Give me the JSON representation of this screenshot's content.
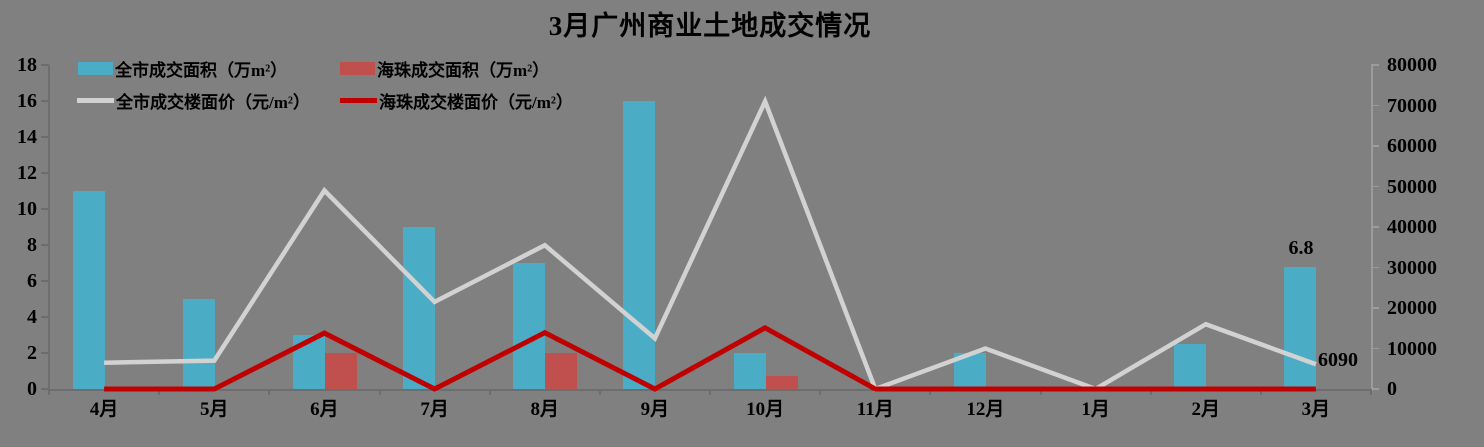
{
  "page": {
    "background": "#808080"
  },
  "chart": {
    "title": "3月广州商业土地成交情况",
    "legend": [
      {
        "label": "全市成交面积（万m²）",
        "swatch": "bar",
        "color": "#4bacc6"
      },
      {
        "label": "海珠成交面积（万m²）",
        "swatch": "bar",
        "color": "#c0504d"
      },
      {
        "label": "全市成交楼面价（元/m²）",
        "swatch": "line",
        "color": "#d2d2d2"
      },
      {
        "label": "海珠成交楼面价（元/m²）",
        "swatch": "line",
        "color": "#c00000"
      }
    ],
    "axes": {
      "left_ticks": [
        "0",
        "2",
        "4",
        "6",
        "8",
        "10",
        "12",
        "14",
        "16",
        "18"
      ],
      "right_ticks": [
        "0",
        "10000",
        "20000",
        "30000",
        "40000",
        "50000",
        "60000",
        "70000",
        "80000"
      ],
      "categories": [
        "4月",
        "5月",
        "6月",
        "7月",
        "8月",
        "9月",
        "10月",
        "11月",
        "12月",
        "1月",
        "2月",
        "3月"
      ]
    },
    "annotations": {
      "march_area_label": "6.8",
      "march_price_label": "6090"
    }
  },
  "chart_data": {
    "type": "combo-bar-line",
    "title": "3月广州商业土地成交情况",
    "categories": [
      "4月",
      "5月",
      "6月",
      "7月",
      "8月",
      "9月",
      "10月",
      "11月",
      "12月",
      "1月",
      "2月",
      "3月"
    ],
    "series": [
      {
        "name": "全市成交面积（万m²）",
        "type": "bar",
        "axis": "left",
        "color": "#4bacc6",
        "values": [
          11,
          5,
          3,
          9,
          7,
          16,
          2,
          0,
          2,
          0,
          2.5,
          6.8
        ]
      },
      {
        "name": "海珠成交面积（万m²）",
        "type": "bar",
        "axis": "left",
        "color": "#c0504d",
        "values": [
          0,
          0,
          2,
          0,
          2,
          0,
          0.7,
          0,
          0,
          0,
          0,
          0
        ]
      },
      {
        "name": "全市成交楼面价（元/m²）",
        "type": "line",
        "axis": "right",
        "color": "#d2d2d2",
        "values": [
          6500,
          7000,
          49000,
          21500,
          35500,
          12500,
          71000,
          0,
          10000,
          0,
          16000,
          6090
        ]
      },
      {
        "name": "海珠成交楼面价（元/m²）",
        "type": "line",
        "axis": "right",
        "color": "#c00000",
        "values": [
          0,
          0,
          13800,
          0,
          13900,
          0,
          15100,
          0,
          0,
          0,
          0,
          0
        ]
      }
    ],
    "left_axis": {
      "min": 0,
      "max": 18,
      "step": 2
    },
    "right_axis": {
      "min": 0,
      "max": 80000,
      "step": 10000
    },
    "grid": false,
    "legend_position": "top-left",
    "data_labels": [
      {
        "series": "全市成交面积（万m²）",
        "category": "3月",
        "text": "6.8"
      },
      {
        "series": "全市成交楼面价（元/m²）",
        "category": "3月",
        "text": "6090"
      }
    ]
  }
}
